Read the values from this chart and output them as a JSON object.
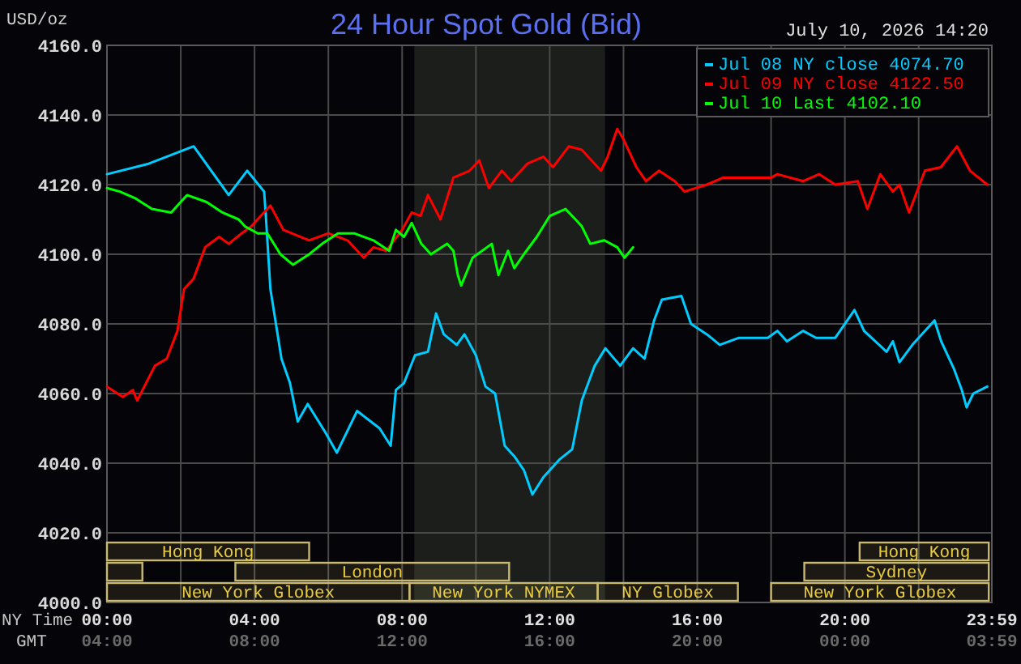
{
  "chart_data": {
    "type": "line",
    "title": "24 Hour Spot Gold (Bid)",
    "subtitle": "July 10, 2026 14:20",
    "ylabel": "USD/oz",
    "xlabel": "NY Time",
    "x2label": "GMT",
    "annotations": [
      "New York Globex",
      "New York NYMEX",
      "NY Globex",
      "New York Globex",
      "London",
      "Sydney",
      "Hong Kong",
      "Hong Kong"
    ],
    "xlim": [
      0,
      23.983
    ],
    "x2lim": [
      "2026-07-10T04:00",
      "2026-07-11T03:59"
    ],
    "ylim": [
      4000,
      4160
    ],
    "x2ticks": [
      {
        "value": "2026-07-10T04:00",
        "label": "04:00"
      },
      {
        "value": "2026-07-10T08:00",
        "label": "08:00"
      },
      {
        "value": "2026-07-10T12:00",
        "label": "12:00"
      },
      {
        "value": "2026-07-10T16:00",
        "label": "16:00"
      },
      {
        "value": "2026-07-10T20:00",
        "label": "20:00"
      },
      {
        "value": "2026-07-11T00:00",
        "label": "00:00"
      },
      {
        "value": "2026-07-11T03:59",
        "label": "03:59"
      }
    ],
    "xticks": [
      {
        "value": 0,
        "label": "00:00"
      },
      {
        "value": 2,
        "label": null
      },
      {
        "value": 4,
        "label": "04:00"
      },
      {
        "value": 6,
        "label": null
      },
      {
        "value": 8,
        "label": "08:00"
      },
      {
        "value": 10,
        "label": null
      },
      {
        "value": 12,
        "label": "12:00"
      },
      {
        "value": 14,
        "label": null
      },
      {
        "value": 16,
        "label": "16:00"
      },
      {
        "value": 18,
        "label": null
      },
      {
        "value": 20,
        "label": "20:00"
      },
      {
        "value": 22,
        "label": null
      },
      {
        "value": 23.983,
        "label": "23:59"
      }
    ],
    "yticks": [
      {
        "value": 4000,
        "label": "4000.0"
      },
      {
        "value": 4020,
        "label": "4020.0"
      },
      {
        "value": 4040,
        "label": "4040.0"
      },
      {
        "value": 4060,
        "label": "4060.0"
      },
      {
        "value": 4080,
        "label": "4080.0"
      },
      {
        "value": 4100,
        "label": "4100.0"
      },
      {
        "value": 4120,
        "label": "4120.0"
      },
      {
        "value": 4140,
        "label": "4140.0"
      },
      {
        "value": 4160,
        "label": "4160.0"
      }
    ],
    "grid": true,
    "legend": "top right",
    "line_style": "solid",
    "marker": "none",
    "bands": [
      {
        "axis": "x",
        "from": 8.33,
        "to": 13.5,
        "color": "#1b1e1b"
      }
    ],
    "series": [
      {
        "name": "Jul 08 NY close 4074.70",
        "color": "#00ccff",
        "x": [
          0,
          1.13,
          2.35,
          3.3,
          3.8,
          4.26,
          4.3,
          4.43,
          4.73,
          4.96,
          5.17,
          5.44,
          5.91,
          6.23,
          6.78,
          7.39,
          7.69,
          7.83,
          8.05,
          8.35,
          8.7,
          8.92,
          9.13,
          9.48,
          9.69,
          10.0,
          10.26,
          10.52,
          10.78,
          11.04,
          11.3,
          11.53,
          11.83,
          12.26,
          12.61,
          12.87,
          13.22,
          13.51,
          13.91,
          14.26,
          14.57,
          14.83,
          15.04,
          15.57,
          15.83,
          16.26,
          16.61,
          17.13,
          17.91,
          18.17,
          18.43,
          18.87,
          19.22,
          19.74,
          20.26,
          20.52,
          21.13,
          21.3,
          21.48,
          21.83,
          22.43,
          22.61,
          22.96,
          23.17,
          23.3,
          23.48,
          23.86
        ],
        "values": [
          4123,
          4126,
          4131,
          4117,
          4124,
          4118,
          4112,
          4090,
          4070,
          4063,
          4052,
          4057,
          4049,
          4043,
          4055,
          4050,
          4045,
          4061,
          4063,
          4071,
          4072,
          4083,
          4077,
          4074,
          4077,
          4071,
          4062,
          4060,
          4045,
          4042,
          4038,
          4031,
          4036,
          4041,
          4044,
          4058,
          4068,
          4073,
          4068,
          4073,
          4070,
          4081,
          4087,
          4088,
          4080,
          4077,
          4074,
          4076,
          4076,
          4078,
          4075,
          4078,
          4076,
          4076,
          4084,
          4078,
          4072,
          4075,
          4069,
          4074,
          4081,
          4075,
          4067,
          4061,
          4056,
          4060,
          4062
        ]
      },
      {
        "name": "Jul 09 NY close 4122.50",
        "color": "#ff0000",
        "x": [
          0,
          0.43,
          0.7,
          0.82,
          1.3,
          1.62,
          1.91,
          2.09,
          2.35,
          2.66,
          3.04,
          3.3,
          3.65,
          3.91,
          4.43,
          4.78,
          5.48,
          6.0,
          6.52,
          6.96,
          7.22,
          7.57,
          8.0,
          8.26,
          8.5,
          8.7,
          9.04,
          9.39,
          9.83,
          10.09,
          10.35,
          10.7,
          10.96,
          11.39,
          11.83,
          12.09,
          12.52,
          12.87,
          13.13,
          13.39,
          13.57,
          13.83,
          14.0,
          14.35,
          14.61,
          14.96,
          15.39,
          15.65,
          16.26,
          16.7,
          18.0,
          18.17,
          18.87,
          19.3,
          19.74,
          20.35,
          20.61,
          20.96,
          21.3,
          21.48,
          21.74,
          22.17,
          22.6,
          23.04,
          23.39,
          23.86
        ],
        "values": [
          4062,
          4059,
          4061,
          4058,
          4068,
          4070,
          4078,
          4090,
          4093,
          4102,
          4105,
          4103,
          4106,
          4108,
          4114,
          4107,
          4104,
          4106,
          4104,
          4099,
          4102,
          4101,
          4107,
          4112,
          4111,
          4117,
          4110,
          4122,
          4124,
          4127,
          4119,
          4124,
          4121,
          4126,
          4128,
          4125,
          4131,
          4130,
          4127,
          4124,
          4128,
          4136,
          4133,
          4125,
          4121,
          4124,
          4121,
          4118,
          4120,
          4122,
          4122,
          4123,
          4121,
          4123,
          4120,
          4121,
          4113,
          4123,
          4118,
          4120,
          4112,
          4124,
          4125,
          4131,
          4124,
          4120
        ]
      },
      {
        "name": "Jul 10 Last 4102.10",
        "color": "#00ff00",
        "x": [
          0,
          0.35,
          0.78,
          1.22,
          1.74,
          2.17,
          2.7,
          3.13,
          3.57,
          3.74,
          4.09,
          4.35,
          4.7,
          5.04,
          5.48,
          5.83,
          6.26,
          6.7,
          7.22,
          7.65,
          7.83,
          8.05,
          8.26,
          8.52,
          8.78,
          9.22,
          9.39,
          9.51,
          9.6,
          9.91,
          10.43,
          10.61,
          10.87,
          11.04,
          11.3,
          11.65,
          12.0,
          12.43,
          12.7,
          12.87,
          13.1,
          13.48,
          13.83,
          14.03,
          14.26
        ],
        "values": [
          4119,
          4118,
          4116,
          4113,
          4112,
          4117,
          4115,
          4112,
          4110,
          4108,
          4106,
          4106,
          4100,
          4097,
          4100,
          4103,
          4106,
          4106,
          4104,
          4101,
          4107,
          4105,
          4109,
          4103,
          4100,
          4103,
          4101,
          4094,
          4091,
          4099,
          4103,
          4094,
          4101,
          4096,
          4100,
          4105,
          4111,
          4113,
          4110,
          4108,
          4103,
          4104,
          4102,
          4099,
          4102
        ]
      }
    ]
  }
}
